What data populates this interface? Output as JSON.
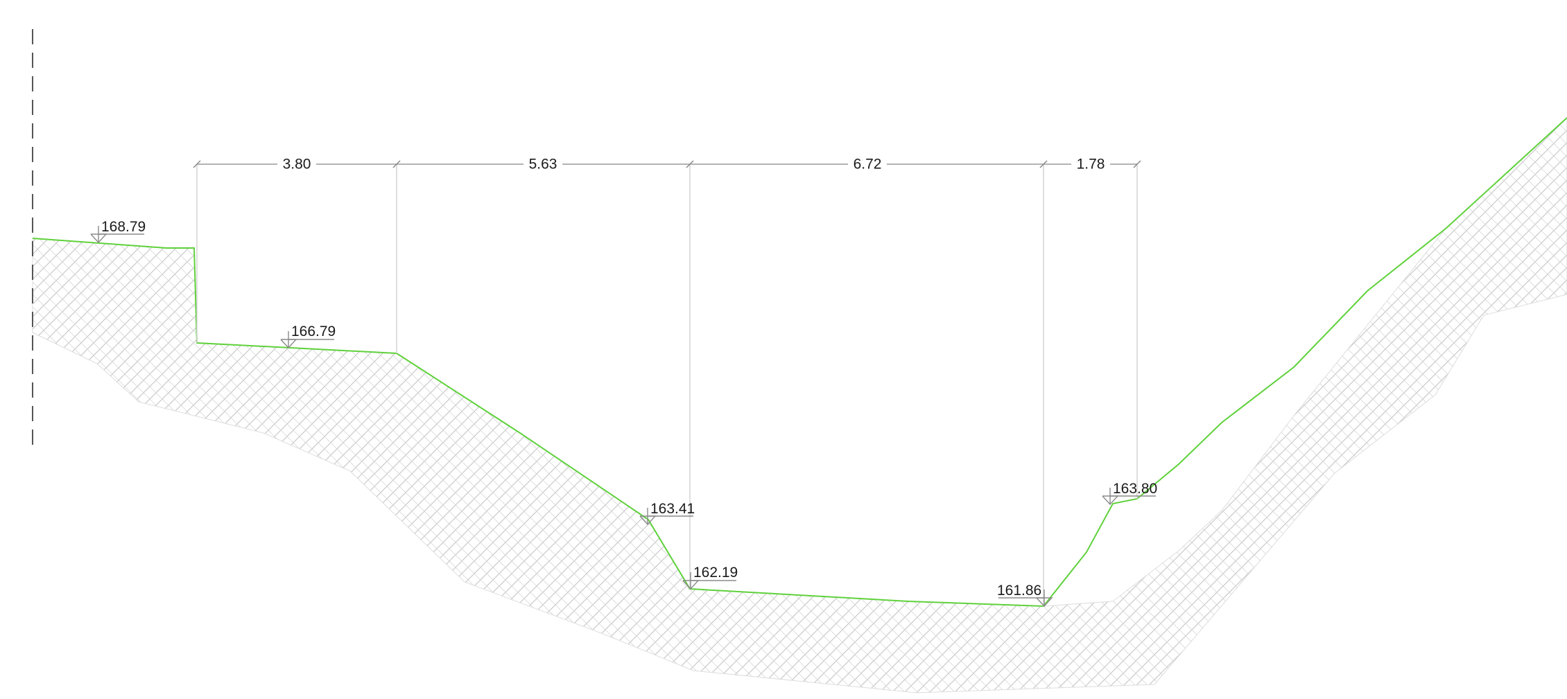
{
  "drawing": {
    "type": "cross-section",
    "colors": {
      "profile_line": "#5ed13a",
      "hatch_line": "#c9c9c9",
      "dimension_line": "#9a9a9a",
      "extension_line": "#d4d4d4",
      "axis_line": "#555555",
      "text": "#1a1a1a"
    },
    "dimensions": [
      {
        "label": "3.80"
      },
      {
        "label": "5.63"
      },
      {
        "label": "6.72"
      },
      {
        "label": "1.78"
      }
    ],
    "elevations": [
      {
        "label": "168.79",
        "icon": "elevation-marker-icon"
      },
      {
        "label": "166.79",
        "icon": "elevation-marker-icon"
      },
      {
        "label": "163.41",
        "icon": "elevation-marker-icon"
      },
      {
        "label": "162.19",
        "icon": "elevation-marker-icon"
      },
      {
        "label": "161.86",
        "icon": "elevation-marker-icon"
      },
      {
        "label": "163.80",
        "icon": "elevation-marker-icon"
      }
    ]
  }
}
